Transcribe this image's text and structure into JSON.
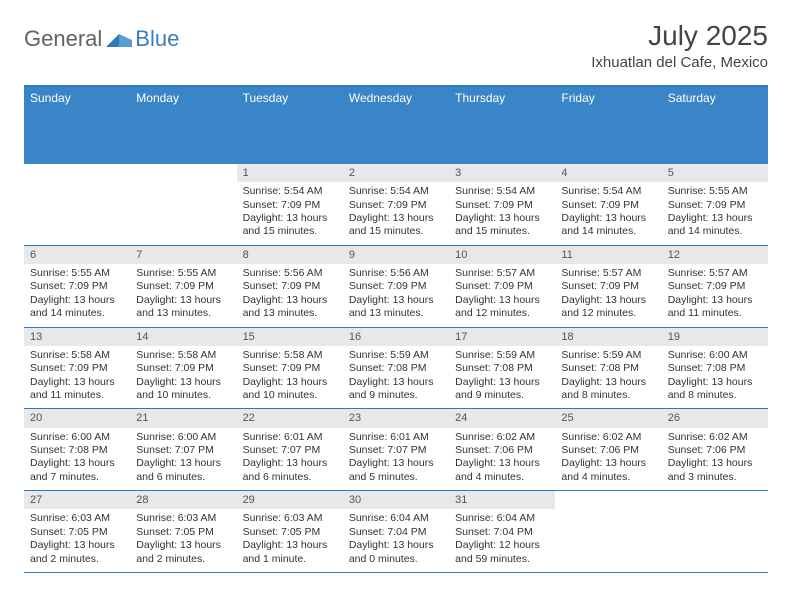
{
  "brand": {
    "word1": "General",
    "word2": "Blue"
  },
  "title": {
    "month": "July 2025",
    "location": "Ixhuatlan del Cafe, Mexico"
  },
  "colors": {
    "header_bar": "#3a85c7",
    "border": "#2f78bd",
    "daynum_bg": "#e7e8e9",
    "text": "#333333",
    "brand_gray": "#636363",
    "brand_blue": "#3a7ebf",
    "background": "#ffffff"
  },
  "typography": {
    "month_fontsize": 28,
    "location_fontsize": 15,
    "dayheader_fontsize": 12,
    "body_fontsize": 10.5
  },
  "day_headers": [
    "Sunday",
    "Monday",
    "Tuesday",
    "Wednesday",
    "Thursday",
    "Friday",
    "Saturday"
  ],
  "weeks": [
    [
      {
        "n": "",
        "lines": []
      },
      {
        "n": "",
        "lines": []
      },
      {
        "n": "1",
        "lines": [
          "Sunrise: 5:54 AM",
          "Sunset: 7:09 PM",
          "Daylight: 13 hours and 15 minutes."
        ]
      },
      {
        "n": "2",
        "lines": [
          "Sunrise: 5:54 AM",
          "Sunset: 7:09 PM",
          "Daylight: 13 hours and 15 minutes."
        ]
      },
      {
        "n": "3",
        "lines": [
          "Sunrise: 5:54 AM",
          "Sunset: 7:09 PM",
          "Daylight: 13 hours and 15 minutes."
        ]
      },
      {
        "n": "4",
        "lines": [
          "Sunrise: 5:54 AM",
          "Sunset: 7:09 PM",
          "Daylight: 13 hours and 14 minutes."
        ]
      },
      {
        "n": "5",
        "lines": [
          "Sunrise: 5:55 AM",
          "Sunset: 7:09 PM",
          "Daylight: 13 hours and 14 minutes."
        ]
      }
    ],
    [
      {
        "n": "6",
        "lines": [
          "Sunrise: 5:55 AM",
          "Sunset: 7:09 PM",
          "Daylight: 13 hours and 14 minutes."
        ]
      },
      {
        "n": "7",
        "lines": [
          "Sunrise: 5:55 AM",
          "Sunset: 7:09 PM",
          "Daylight: 13 hours and 13 minutes."
        ]
      },
      {
        "n": "8",
        "lines": [
          "Sunrise: 5:56 AM",
          "Sunset: 7:09 PM",
          "Daylight: 13 hours and 13 minutes."
        ]
      },
      {
        "n": "9",
        "lines": [
          "Sunrise: 5:56 AM",
          "Sunset: 7:09 PM",
          "Daylight: 13 hours and 13 minutes."
        ]
      },
      {
        "n": "10",
        "lines": [
          "Sunrise: 5:57 AM",
          "Sunset: 7:09 PM",
          "Daylight: 13 hours and 12 minutes."
        ]
      },
      {
        "n": "11",
        "lines": [
          "Sunrise: 5:57 AM",
          "Sunset: 7:09 PM",
          "Daylight: 13 hours and 12 minutes."
        ]
      },
      {
        "n": "12",
        "lines": [
          "Sunrise: 5:57 AM",
          "Sunset: 7:09 PM",
          "Daylight: 13 hours and 11 minutes."
        ]
      }
    ],
    [
      {
        "n": "13",
        "lines": [
          "Sunrise: 5:58 AM",
          "Sunset: 7:09 PM",
          "Daylight: 13 hours and 11 minutes."
        ]
      },
      {
        "n": "14",
        "lines": [
          "Sunrise: 5:58 AM",
          "Sunset: 7:09 PM",
          "Daylight: 13 hours and 10 minutes."
        ]
      },
      {
        "n": "15",
        "lines": [
          "Sunrise: 5:58 AM",
          "Sunset: 7:09 PM",
          "Daylight: 13 hours and 10 minutes."
        ]
      },
      {
        "n": "16",
        "lines": [
          "Sunrise: 5:59 AM",
          "Sunset: 7:08 PM",
          "Daylight: 13 hours and 9 minutes."
        ]
      },
      {
        "n": "17",
        "lines": [
          "Sunrise: 5:59 AM",
          "Sunset: 7:08 PM",
          "Daylight: 13 hours and 9 minutes."
        ]
      },
      {
        "n": "18",
        "lines": [
          "Sunrise: 5:59 AM",
          "Sunset: 7:08 PM",
          "Daylight: 13 hours and 8 minutes."
        ]
      },
      {
        "n": "19",
        "lines": [
          "Sunrise: 6:00 AM",
          "Sunset: 7:08 PM",
          "Daylight: 13 hours and 8 minutes."
        ]
      }
    ],
    [
      {
        "n": "20",
        "lines": [
          "Sunrise: 6:00 AM",
          "Sunset: 7:08 PM",
          "Daylight: 13 hours and 7 minutes."
        ]
      },
      {
        "n": "21",
        "lines": [
          "Sunrise: 6:00 AM",
          "Sunset: 7:07 PM",
          "Daylight: 13 hours and 6 minutes."
        ]
      },
      {
        "n": "22",
        "lines": [
          "Sunrise: 6:01 AM",
          "Sunset: 7:07 PM",
          "Daylight: 13 hours and 6 minutes."
        ]
      },
      {
        "n": "23",
        "lines": [
          "Sunrise: 6:01 AM",
          "Sunset: 7:07 PM",
          "Daylight: 13 hours and 5 minutes."
        ]
      },
      {
        "n": "24",
        "lines": [
          "Sunrise: 6:02 AM",
          "Sunset: 7:06 PM",
          "Daylight: 13 hours and 4 minutes."
        ]
      },
      {
        "n": "25",
        "lines": [
          "Sunrise: 6:02 AM",
          "Sunset: 7:06 PM",
          "Daylight: 13 hours and 4 minutes."
        ]
      },
      {
        "n": "26",
        "lines": [
          "Sunrise: 6:02 AM",
          "Sunset: 7:06 PM",
          "Daylight: 13 hours and 3 minutes."
        ]
      }
    ],
    [
      {
        "n": "27",
        "lines": [
          "Sunrise: 6:03 AM",
          "Sunset: 7:05 PM",
          "Daylight: 13 hours and 2 minutes."
        ]
      },
      {
        "n": "28",
        "lines": [
          "Sunrise: 6:03 AM",
          "Sunset: 7:05 PM",
          "Daylight: 13 hours and 2 minutes."
        ]
      },
      {
        "n": "29",
        "lines": [
          "Sunrise: 6:03 AM",
          "Sunset: 7:05 PM",
          "Daylight: 13 hours and 1 minute."
        ]
      },
      {
        "n": "30",
        "lines": [
          "Sunrise: 6:04 AM",
          "Sunset: 7:04 PM",
          "Daylight: 13 hours and 0 minutes."
        ]
      },
      {
        "n": "31",
        "lines": [
          "Sunrise: 6:04 AM",
          "Sunset: 7:04 PM",
          "Daylight: 12 hours and 59 minutes."
        ]
      },
      {
        "n": "",
        "lines": []
      },
      {
        "n": "",
        "lines": []
      }
    ]
  ]
}
